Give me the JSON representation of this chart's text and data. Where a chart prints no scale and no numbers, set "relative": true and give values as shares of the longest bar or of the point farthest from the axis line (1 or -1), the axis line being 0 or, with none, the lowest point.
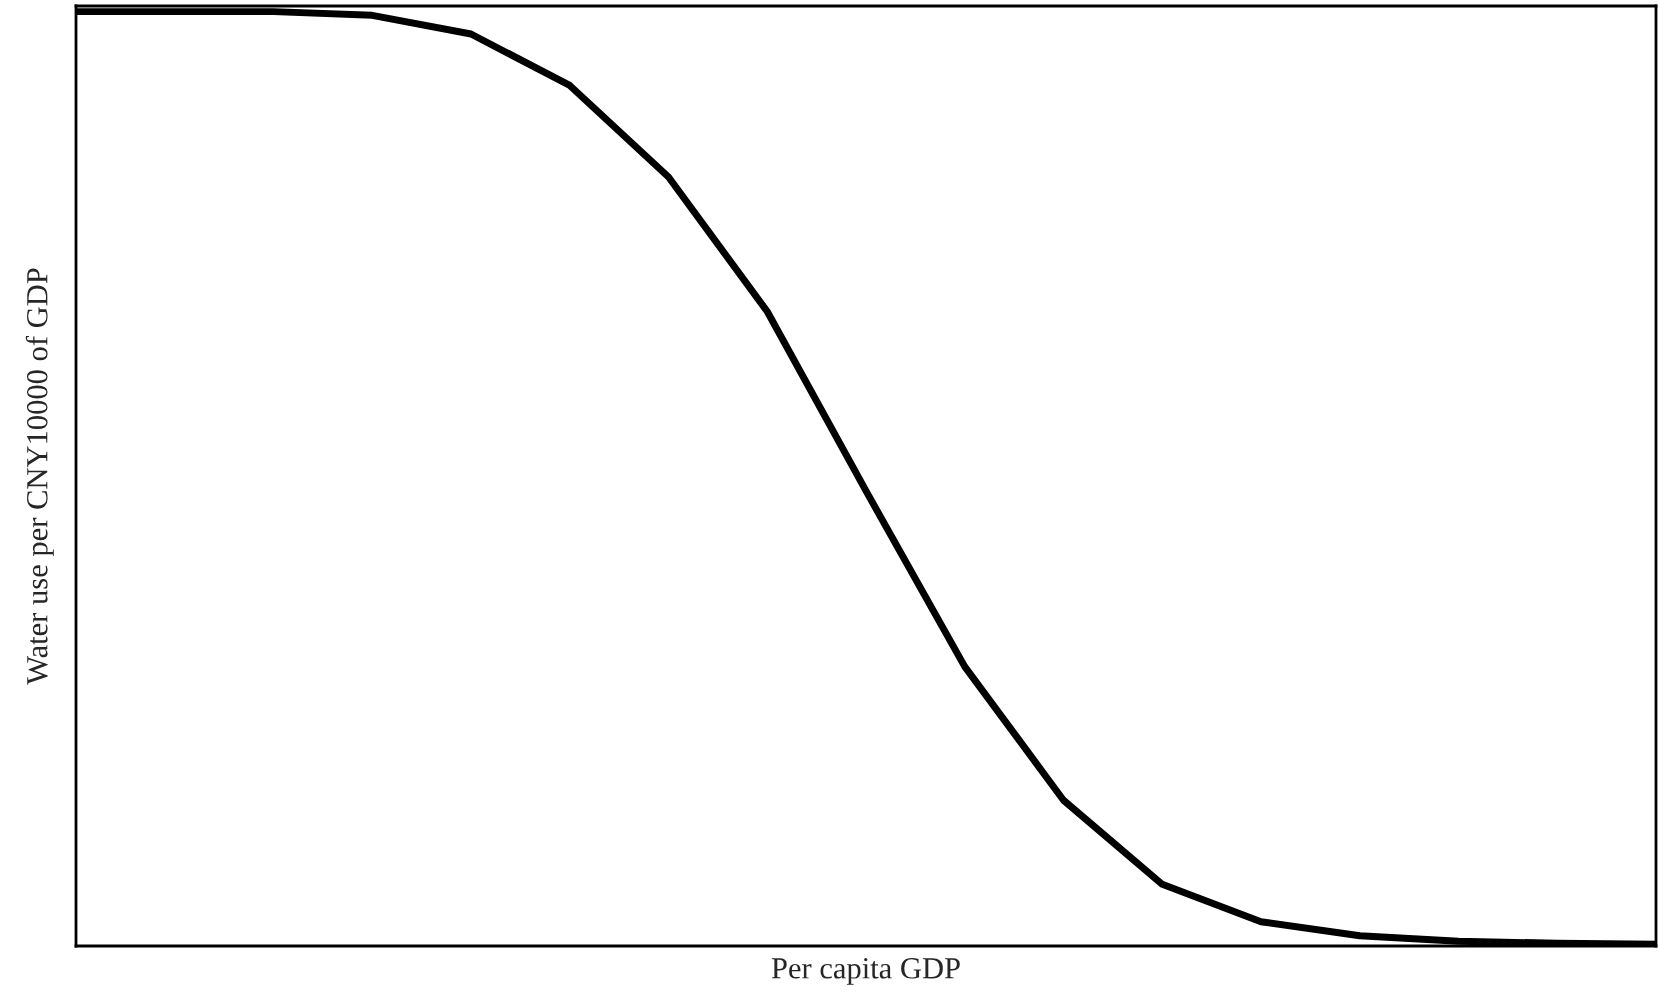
{
  "chart_data": {
    "type": "line",
    "relative": true,
    "xlabel": "Per capita GDP",
    "ylabel": "Water use per CNY10000 of GDP",
    "categories": [
      null,
      null,
      null,
      null,
      null,
      null,
      null,
      null,
      null,
      null,
      null,
      null,
      null,
      null,
      null,
      null,
      null
    ],
    "series": [
      {
        "color": "#000000",
        "values": [
          1,
          1,
          1,
          0.996,
          0.976,
          0.921,
          0.823,
          0.679,
          0.487,
          0.299,
          0.156,
          0.066,
          0.026,
          0.011,
          0.005,
          0.003,
          0.002
        ]
      }
    ],
    "marker": "none",
    "line_style": "solid",
    "legend": false,
    "tick_labels": false
  }
}
